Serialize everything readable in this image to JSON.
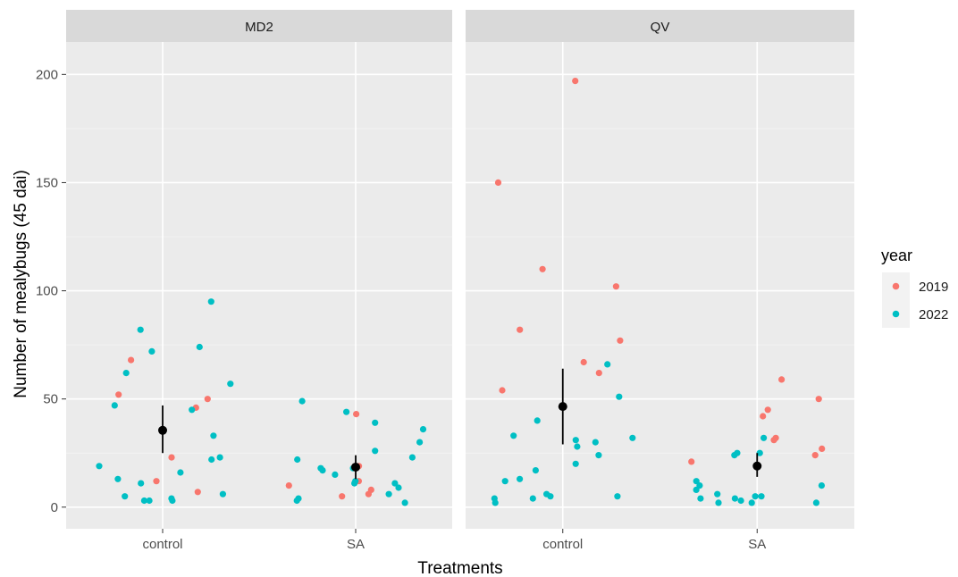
{
  "chart_data": {
    "type": "scatter",
    "xlabel": "Treatments",
    "ylabel": "Number of mealybugs (45 dai)",
    "ylim": [
      -10,
      215
    ],
    "yticks": [
      0,
      50,
      100,
      150,
      200
    ],
    "ytick_labels": [
      "0",
      "50",
      "100",
      "150",
      "200"
    ],
    "categories": [
      "control",
      "SA"
    ],
    "grid": true,
    "legend": {
      "title": "year",
      "position": "right",
      "entries": [
        {
          "label": "2019",
          "color": "#F8766D"
        },
        {
          "label": "2022",
          "color": "#00BFC4"
        }
      ]
    },
    "summary_color": "#000000",
    "panels": [
      {
        "name": "MD2",
        "series": [
          {
            "name": "2019",
            "points": [
              {
                "x": "control",
                "y": 52
              },
              {
                "x": "control",
                "y": 46
              },
              {
                "x": "control",
                "y": 23
              },
              {
                "x": "control",
                "y": 12
              },
              {
                "x": "control",
                "y": 68
              },
              {
                "x": "control",
                "y": 50
              },
              {
                "x": "control",
                "y": 7
              },
              {
                "x": "SA",
                "y": 43
              },
              {
                "x": "SA",
                "y": 19
              },
              {
                "x": "SA",
                "y": 12
              },
              {
                "x": "SA",
                "y": 10
              },
              {
                "x": "SA",
                "y": 6
              },
              {
                "x": "SA",
                "y": 8
              },
              {
                "x": "SA",
                "y": 5
              }
            ]
          },
          {
            "name": "2022",
            "points": [
              {
                "x": "control",
                "y": 95
              },
              {
                "x": "control",
                "y": 82
              },
              {
                "x": "control",
                "y": 72
              },
              {
                "x": "control",
                "y": 62
              },
              {
                "x": "control",
                "y": 57
              },
              {
                "x": "control",
                "y": 45
              },
              {
                "x": "control",
                "y": 33
              },
              {
                "x": "control",
                "y": 22
              },
              {
                "x": "control",
                "y": 19
              },
              {
                "x": "control",
                "y": 16
              },
              {
                "x": "control",
                "y": 6
              },
              {
                "x": "control",
                "y": 5
              },
              {
                "x": "control",
                "y": 74
              },
              {
                "x": "control",
                "y": 47
              },
              {
                "x": "control",
                "y": 23
              },
              {
                "x": "control",
                "y": 13
              },
              {
                "x": "control",
                "y": 11
              },
              {
                "x": "control",
                "y": 4
              },
              {
                "x": "control",
                "y": 3
              },
              {
                "x": "control",
                "y": 3
              },
              {
                "x": "control",
                "y": 3
              },
              {
                "x": "SA",
                "y": 49
              },
              {
                "x": "SA",
                "y": 39
              },
              {
                "x": "SA",
                "y": 30
              },
              {
                "x": "SA",
                "y": 18
              },
              {
                "x": "SA",
                "y": 17
              },
              {
                "x": "SA",
                "y": 11
              },
              {
                "x": "SA",
                "y": 2
              },
              {
                "x": "SA",
                "y": 26
              },
              {
                "x": "SA",
                "y": 22
              },
              {
                "x": "SA",
                "y": 12
              },
              {
                "x": "SA",
                "y": 9
              },
              {
                "x": "SA",
                "y": 6
              },
              {
                "x": "SA",
                "y": 4
              },
              {
                "x": "SA",
                "y": 44
              },
              {
                "x": "SA",
                "y": 36
              },
              {
                "x": "SA",
                "y": 23
              },
              {
                "x": "SA",
                "y": 18
              },
              {
                "x": "SA",
                "y": 15
              },
              {
                "x": "SA",
                "y": 11
              },
              {
                "x": "SA",
                "y": 3
              }
            ]
          }
        ],
        "summary": [
          {
            "x": "control",
            "mean": 35.5,
            "low": 25,
            "high": 47
          },
          {
            "x": "SA",
            "mean": 18.5,
            "low": 13,
            "high": 24
          }
        ]
      },
      {
        "name": "QV",
        "series": [
          {
            "name": "2019",
            "points": [
              {
                "x": "control",
                "y": 197
              },
              {
                "x": "control",
                "y": 150
              },
              {
                "x": "control",
                "y": 110
              },
              {
                "x": "control",
                "y": 102
              },
              {
                "x": "control",
                "y": 82
              },
              {
                "x": "control",
                "y": 77
              },
              {
                "x": "control",
                "y": 67
              },
              {
                "x": "control",
                "y": 62
              },
              {
                "x": "control",
                "y": 54
              },
              {
                "x": "SA",
                "y": 59
              },
              {
                "x": "SA",
                "y": 50
              },
              {
                "x": "SA",
                "y": 45
              },
              {
                "x": "SA",
                "y": 42
              },
              {
                "x": "SA",
                "y": 32
              },
              {
                "x": "SA",
                "y": 31
              },
              {
                "x": "SA",
                "y": 27
              },
              {
                "x": "SA",
                "y": 24
              },
              {
                "x": "SA",
                "y": 21
              }
            ]
          },
          {
            "name": "2022",
            "points": [
              {
                "x": "control",
                "y": 66
              },
              {
                "x": "control",
                "y": 51
              },
              {
                "x": "control",
                "y": 40
              },
              {
                "x": "control",
                "y": 33
              },
              {
                "x": "control",
                "y": 32
              },
              {
                "x": "control",
                "y": 31
              },
              {
                "x": "control",
                "y": 30
              },
              {
                "x": "control",
                "y": 28
              },
              {
                "x": "control",
                "y": 24
              },
              {
                "x": "control",
                "y": 20
              },
              {
                "x": "control",
                "y": 17
              },
              {
                "x": "control",
                "y": 13
              },
              {
                "x": "control",
                "y": 12
              },
              {
                "x": "control",
                "y": 6
              },
              {
                "x": "control",
                "y": 5
              },
              {
                "x": "control",
                "y": 5
              },
              {
                "x": "control",
                "y": 4
              },
              {
                "x": "control",
                "y": 4
              },
              {
                "x": "control",
                "y": 2
              },
              {
                "x": "SA",
                "y": 32
              },
              {
                "x": "SA",
                "y": 25
              },
              {
                "x": "SA",
                "y": 25
              },
              {
                "x": "SA",
                "y": 24
              },
              {
                "x": "SA",
                "y": 12
              },
              {
                "x": "SA",
                "y": 10
              },
              {
                "x": "SA",
                "y": 10
              },
              {
                "x": "SA",
                "y": 8
              },
              {
                "x": "SA",
                "y": 6
              },
              {
                "x": "SA",
                "y": 5
              },
              {
                "x": "SA",
                "y": 5
              },
              {
                "x": "SA",
                "y": 4
              },
              {
                "x": "SA",
                "y": 4
              },
              {
                "x": "SA",
                "y": 3
              },
              {
                "x": "SA",
                "y": 2
              },
              {
                "x": "SA",
                "y": 2
              },
              {
                "x": "SA",
                "y": 2
              }
            ]
          }
        ],
        "summary": [
          {
            "x": "control",
            "mean": 46.5,
            "low": 29,
            "high": 64
          },
          {
            "x": "SA",
            "mean": 19,
            "low": 14,
            "high": 25
          }
        ]
      }
    ]
  }
}
